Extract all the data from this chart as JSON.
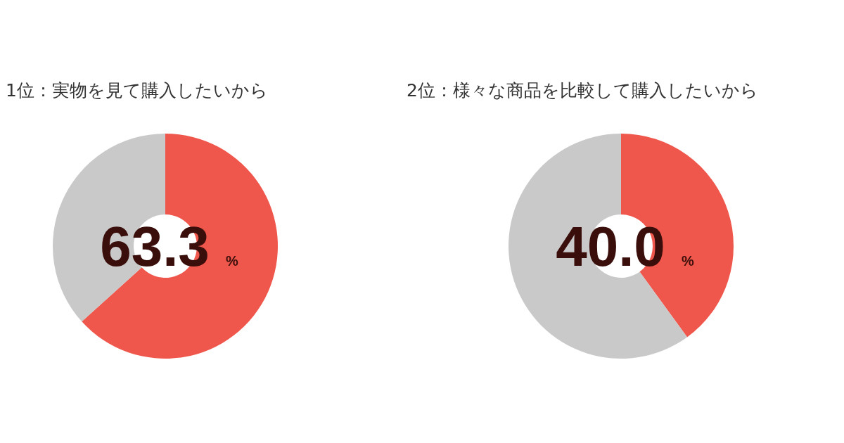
{
  "chart_data": [
    {
      "type": "donut",
      "title": "1位：実物を見て購入したいから",
      "categories": [
        null,
        null
      ],
      "values": [
        63.3,
        36.7
      ],
      "colors": [
        "#f0574c",
        "#c9c9c9"
      ],
      "value_labels": [
        "63.3 %",
        null
      ]
    },
    {
      "type": "donut",
      "title": "2位：様々な商品を比較して購入したいから",
      "categories": [
        null,
        null
      ],
      "values": [
        40.0,
        60.0
      ],
      "colors": [
        "#f0574c",
        "#c9c9c9"
      ],
      "value_labels": [
        "40.0 %",
        null
      ]
    }
  ]
}
